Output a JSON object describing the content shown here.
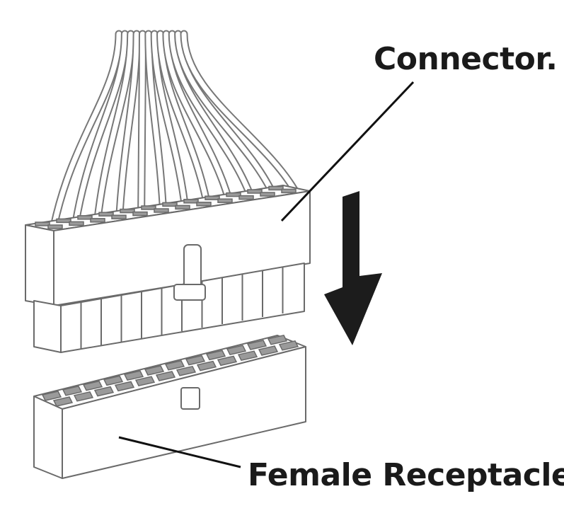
{
  "labels": {
    "connector": "Connector.",
    "female_receptacle": "Female Receptacle."
  },
  "colors": {
    "arrow": "#1c1c1c",
    "text": "#1a1a1a",
    "outline": "#6a6a6a"
  }
}
